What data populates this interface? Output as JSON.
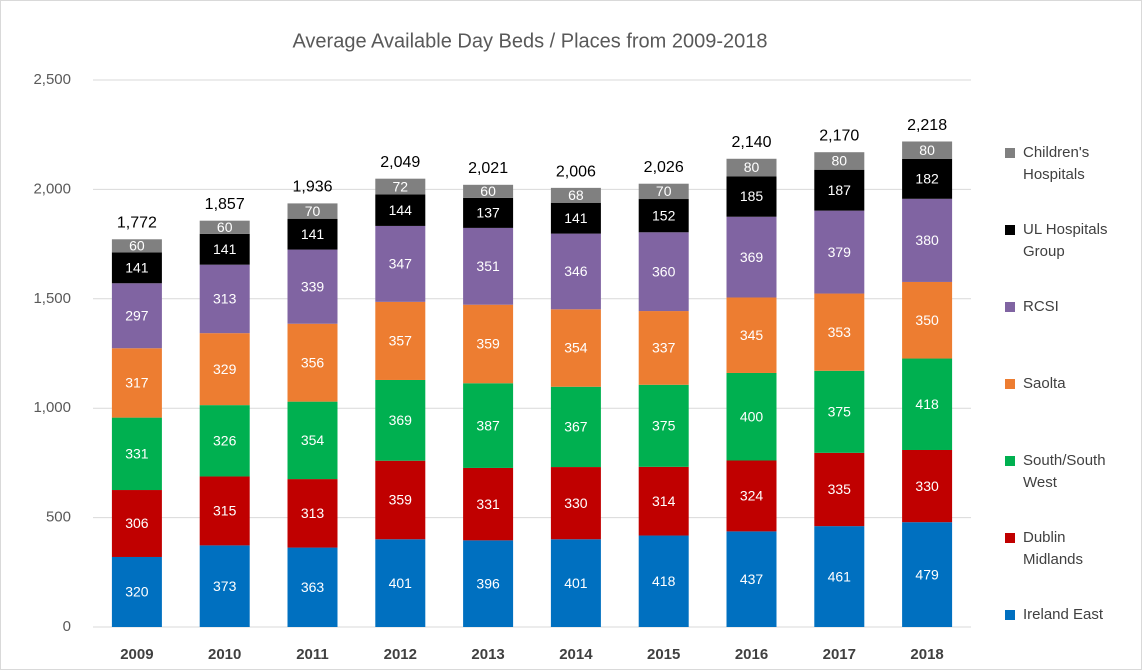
{
  "chart_data": {
    "type": "stacked_bar",
    "title": "Average Available Day Beds / Places from 2009-2018",
    "categories": [
      "2009",
      "2010",
      "2011",
      "2012",
      "2013",
      "2014",
      "2015",
      "2016",
      "2017",
      "2018"
    ],
    "series": [
      {
        "name": "Ireland East",
        "color": "#0070c0",
        "values": [
          320,
          373,
          363,
          401,
          396,
          401,
          418,
          437,
          461,
          479
        ]
      },
      {
        "name": "Dublin Midlands",
        "color": "#c00000",
        "values": [
          306,
          315,
          313,
          359,
          331,
          330,
          314,
          324,
          335,
          330
        ]
      },
      {
        "name": "South/South West",
        "color": "#00b050",
        "values": [
          331,
          326,
          354,
          369,
          387,
          367,
          375,
          400,
          375,
          418
        ]
      },
      {
        "name": "Saolta",
        "color": "#ed7d31",
        "values": [
          317,
          329,
          356,
          357,
          359,
          354,
          337,
          345,
          353,
          350
        ]
      },
      {
        "name": "RCSI",
        "color": "#8064a2",
        "values": [
          297,
          313,
          339,
          347,
          351,
          346,
          360,
          369,
          379,
          380
        ]
      },
      {
        "name": "UL Hospitals Group",
        "color": "#000000",
        "values": [
          141,
          141,
          141,
          144,
          137,
          141,
          152,
          185,
          187,
          182
        ]
      },
      {
        "name": "Children's Hospitals",
        "color": "#808080",
        "values": [
          60,
          60,
          70,
          72,
          60,
          68,
          70,
          80,
          80,
          80
        ]
      }
    ],
    "totals": [
      1772,
      1857,
      1936,
      2049,
      2021,
      2006,
      2026,
      2140,
      2170,
      2218
    ],
    "total_labels": [
      "1,772",
      "1,857",
      "1,936",
      "2,049",
      "2,021",
      "2,006",
      "2,026",
      "2,140",
      "2,170",
      "2,218"
    ],
    "ylim": [
      0,
      2500
    ],
    "yticks": [
      0,
      500,
      {
        "value": 1000,
        "label": "1,000"
      },
      {
        "value": 1500,
        "label": "1,500"
      },
      {
        "value": 2000,
        "label": "2,000"
      },
      {
        "value": 2500,
        "label": "2,500"
      }
    ],
    "grid": true,
    "legend": "right"
  }
}
